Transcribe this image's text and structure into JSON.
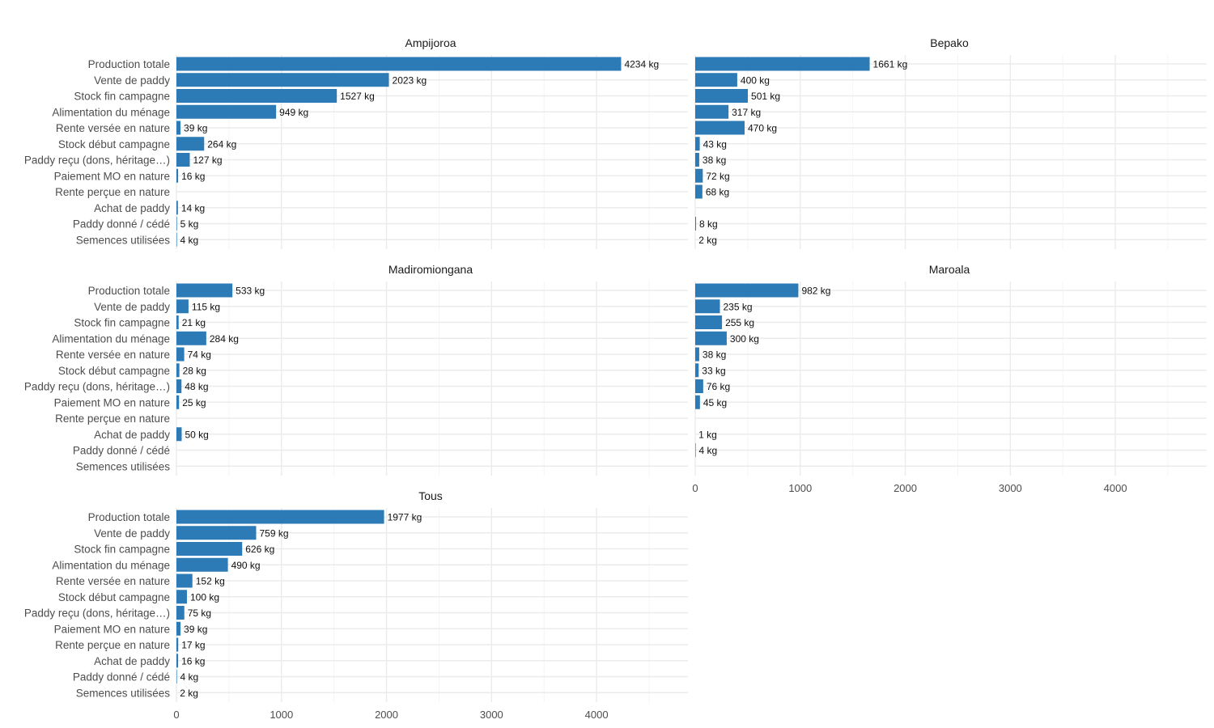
{
  "chart_data": {
    "type": "bar",
    "orientation": "horizontal",
    "facet_layout": "2 columns, shared x axis",
    "xlim": [
      0,
      4870
    ],
    "x_ticks": [
      0,
      1000,
      2000,
      3000,
      4000
    ],
    "x_tick_labels": [
      "0",
      "1000",
      "2000",
      "3000",
      "4000"
    ],
    "grid": true,
    "unit_suffix": " kg",
    "bar_color": "#2c7bb6",
    "categories": [
      "Production totale",
      "Vente de paddy",
      "Stock fin campagne",
      "Alimentation du ménage",
      "Rente versée en nature",
      "Stock début campagne",
      "Paddy reçu (dons, héritage…)",
      "Paiement MO en nature",
      "Rente perçue en nature",
      "Achat de paddy",
      "Paddy donné / cédé",
      "Semences utilisées"
    ],
    "panels": [
      {
        "title": "Ampijoroa",
        "values": [
          4234,
          2023,
          1527,
          949,
          39,
          264,
          127,
          16,
          null,
          14,
          5,
          4
        ],
        "show_x_axis": false
      },
      {
        "title": "Bepako",
        "values": [
          1661,
          400,
          501,
          317,
          470,
          43,
          38,
          72,
          68,
          null,
          8,
          2
        ],
        "show_x_axis": false
      },
      {
        "title": "Madiromiongana",
        "values": [
          533,
          115,
          21,
          284,
          74,
          28,
          48,
          25,
          null,
          50,
          null,
          null
        ],
        "show_x_axis": false
      },
      {
        "title": "Maroala",
        "values": [
          982,
          235,
          255,
          300,
          38,
          33,
          76,
          45,
          null,
          1,
          4,
          null
        ],
        "show_x_axis": true
      },
      {
        "title": "Tous",
        "values": [
          1977,
          759,
          626,
          490,
          152,
          100,
          75,
          39,
          17,
          16,
          4,
          2
        ],
        "show_x_axis": true
      }
    ]
  }
}
